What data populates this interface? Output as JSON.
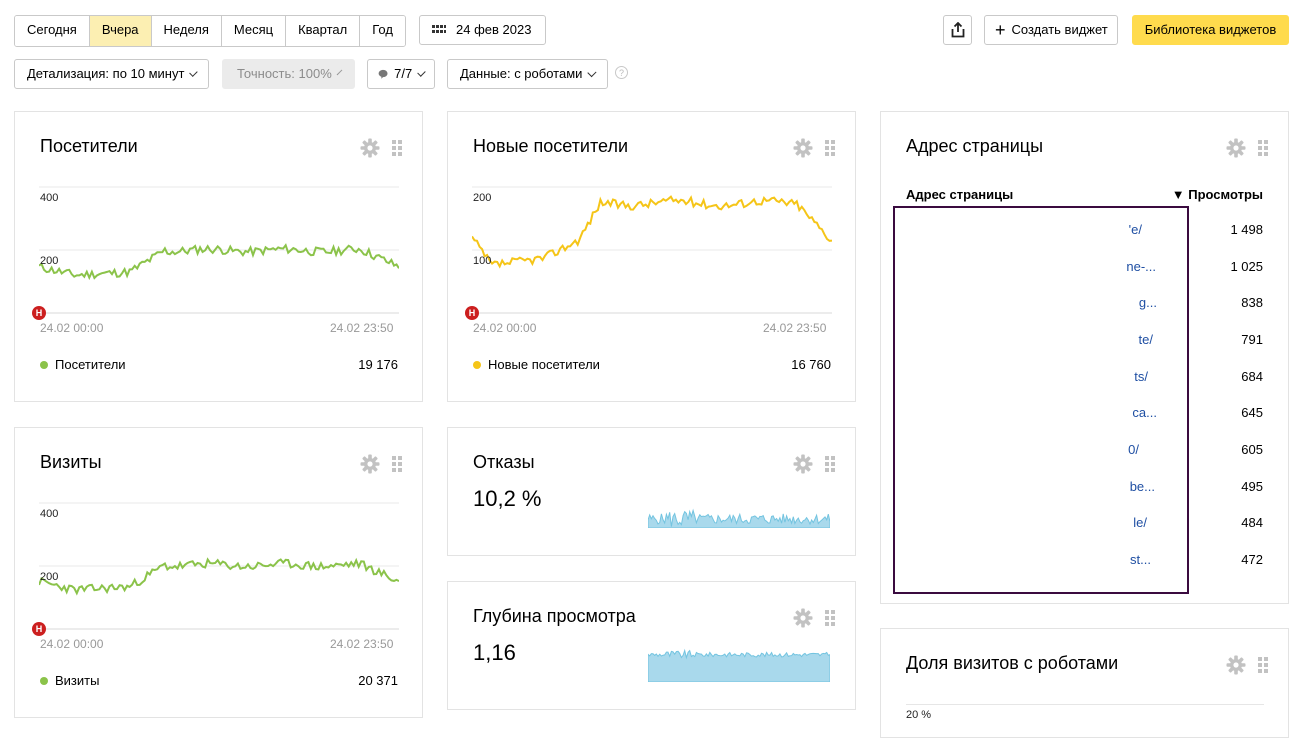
{
  "toolbar": {
    "periods": [
      {
        "label": "Сегодня",
        "active": false
      },
      {
        "label": "Вчера",
        "active": true
      },
      {
        "label": "Неделя",
        "active": false
      },
      {
        "label": "Месяц",
        "active": false
      },
      {
        "label": "Квартал",
        "active": false
      },
      {
        "label": "Год",
        "active": false
      }
    ],
    "date_label": "24 фев 2023",
    "create_widget_label": "Создать виджет",
    "widget_library_label": "Библиотека виджетов"
  },
  "filters": {
    "detail_label": "Детализация: по 10 минут",
    "accuracy_label": "Точность: 100%",
    "segments_label": "7/7",
    "data_label": "Данные: с роботами",
    "help_icon": "?"
  },
  "visitors": {
    "title": "Посетители",
    "y_ticks": [
      "400",
      "200"
    ],
    "date_start": "24.02 00:00",
    "date_end": "24.02 23:50",
    "legend": "Посетители",
    "total": "19 176",
    "color": "#8bc34a"
  },
  "new_visitors": {
    "title": "Новые посетители",
    "y_ticks": [
      "200",
      "100"
    ],
    "date_start": "24.02 00:00",
    "date_end": "24.02 23:50",
    "legend": "Новые посетители",
    "total": "16 760",
    "color": "#f5c518"
  },
  "visits": {
    "title": "Визиты",
    "y_ticks": [
      "400",
      "200"
    ],
    "date_start": "24.02 00:00",
    "date_end": "24.02 23:50",
    "legend": "Визиты",
    "total": "20 371",
    "color": "#8bc34a"
  },
  "bounce": {
    "title": "Отказы",
    "value": "10,2 %",
    "color": "#73c4e0"
  },
  "depth": {
    "title": "Глубина просмотра",
    "value": "1,16",
    "color": "#73c4e0"
  },
  "pages": {
    "title": "Адрес страницы",
    "col_url": "Адрес страницы",
    "col_views": "▼ Просмотры",
    "rows": [
      {
        "url": "'e/",
        "views": "1 498"
      },
      {
        "url": "ne-...",
        "views": "1 025"
      },
      {
        "url": "g...",
        "views": "838"
      },
      {
        "url": "te/",
        "views": "791"
      },
      {
        "url": "ts/",
        "views": "684"
      },
      {
        "url": "ca...",
        "views": "645"
      },
      {
        "url": "0/",
        "views": "605"
      },
      {
        "url": "be...",
        "views": "495"
      },
      {
        "url": "le/",
        "views": "484"
      },
      {
        "url": "st...",
        "views": "472"
      }
    ]
  },
  "robots": {
    "title": "Доля визитов с роботами",
    "y_tick": "20 %"
  },
  "marker_label": "Н"
}
